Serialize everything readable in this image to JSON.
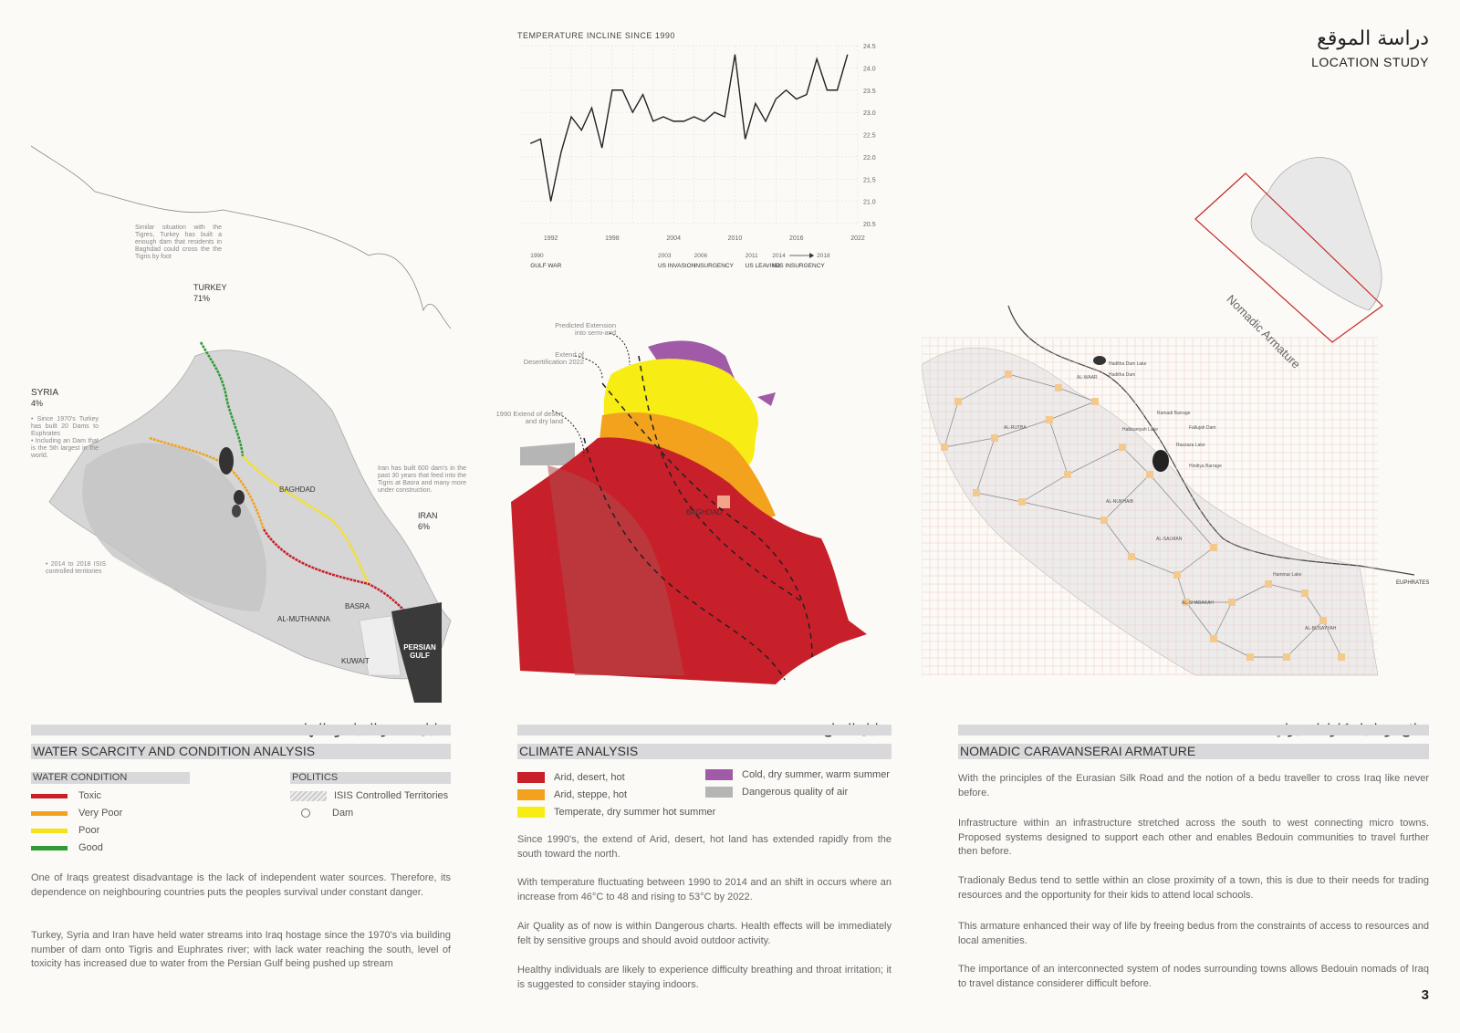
{
  "header": {
    "title_ar": "دراسة الموقع",
    "title_en": "LOCATION STUDY",
    "page_number": "3"
  },
  "chart_data": {
    "type": "line",
    "title": "TEMPERATURE INCLINE SINCE 1990",
    "x": [
      1990,
      1991,
      1992,
      1993,
      1994,
      1995,
      1996,
      1997,
      1998,
      1999,
      2000,
      2001,
      2002,
      2003,
      2004,
      2005,
      2006,
      2007,
      2008,
      2009,
      2010,
      2011,
      2012,
      2013,
      2014,
      2015,
      2016,
      2017,
      2018,
      2019,
      2020,
      2021
    ],
    "y": [
      22.3,
      22.4,
      21.0,
      22.1,
      22.9,
      22.6,
      23.1,
      22.2,
      23.5,
      23.5,
      23.0,
      23.4,
      22.8,
      22.9,
      22.8,
      22.8,
      22.9,
      22.8,
      23.0,
      22.9,
      24.3,
      22.4,
      23.2,
      22.8,
      23.3,
      23.5,
      23.3,
      23.4,
      24.2,
      23.5,
      23.5,
      24.3
    ],
    "ylim": [
      20.5,
      24.5
    ],
    "yticks": [
      "24.5",
      "24.0",
      "23.5",
      "23.0",
      "22.5",
      "22.0",
      "21.5",
      "21.0",
      "20.5"
    ],
    "xticks": [
      "1992",
      "1998",
      "2004",
      "2010",
      "2016",
      "2022"
    ],
    "events": [
      {
        "year": "1990",
        "label": "GULF WAR"
      },
      {
        "year": "2003",
        "label": "US INVASION"
      },
      {
        "year": "2006",
        "label": "INSURGENCY"
      },
      {
        "year": "2011",
        "label": "US LEAVING"
      },
      {
        "year": "2014",
        "label": "ISIS INSURGENCY"
      },
      {
        "year": "2018",
        "label": ""
      }
    ],
    "grid": true,
    "color": "#222222"
  },
  "water_map": {
    "labels": {
      "turkey": "TURKEY",
      "turkey_pct": "71%",
      "syria": "SYRIA",
      "syria_pct": "4%",
      "iran": "IRAN",
      "iran_pct": "6%",
      "baghdad": "BAGHDAD",
      "basra": "BASRA",
      "al_muthanna": "AL-MUTHANNA",
      "kuwait": "KUWAIT",
      "gulf": "PERSIAN GULF"
    },
    "notes": {
      "turkey": "Similar situation with the Tigres, Turkey has built a enough dam that residents in Baghdad could cross the the Tigris by foot",
      "syria1": "• Since 1970's Turkey has built 20 Dams to Euphrates",
      "syria2": "• Including an Dam that is the 5th largest in the world.",
      "iran": "Iran has built 600 dam's in the past 30 years that feed into the Tigris at Basra and many more under construction.",
      "isis": "• 2014 to 2018 ISIS controlled territories"
    }
  },
  "climate_map": {
    "labels": {
      "predicted": "Predicted Extension into semi-arid",
      "extend2022": "Extend of Desertification 2022",
      "extend1990": "1990 Extend of desert and dry land",
      "baghdad": "BAGHDAD"
    }
  },
  "nomadic_map": {
    "inset_label": "Nomadic Armature",
    "euphrates": "EUPHRATES",
    "places": [
      "Haditha Dam Lake",
      "Haditha Dam",
      "Ramadi Barrage",
      "Habbaniyah Lake",
      "Fallujah Dam",
      "Razzaza Lake",
      "Hindiya Barrage",
      "AL-RUTBA",
      "AL-NUKHAIB",
      "AL-SALMAN",
      "AL-SHABAKAH",
      "AL-BUSAYYAH",
      "AL-WAAR",
      "Hammar Lake"
    ],
    "colors": {
      "grid": "#f0c9c0",
      "node": "#f3c98e",
      "frame": "#c52a2a"
    }
  },
  "water_section": {
    "title_ar": "تحليل مصدر المياه وحالتها",
    "title_en": "WATER SCARCITY AND CONDITION ANALYSIS",
    "condition_header": "WATER CONDITION",
    "politics_header": "POLITICS",
    "conditions": [
      {
        "label": "Toxic",
        "color": "#c8202a"
      },
      {
        "label": "Very Poor",
        "color": "#f2a21d"
      },
      {
        "label": "Poor",
        "color": "#f7e21a"
      },
      {
        "label": "Good",
        "color": "#2f9a36"
      }
    ],
    "politics": [
      {
        "label": "ISIS Controlled Territories"
      },
      {
        "label": "Dam"
      }
    ],
    "paragraphs": [
      "One of Iraqs greatest disadvantage is the lack of independent water sources. Therefore, its dependence on neighbouring countries puts the peoples survival under constant danger.",
      "Turkey, Syria and Iran have held water streams into Iraq hostage since the 1970's via building number of dam onto Tigris and Euphrates river; with lack water reaching the south, level of toxicity has increased due to water from the Persian Gulf being pushed up stream"
    ]
  },
  "climate_section": {
    "title_ar": "تحليل المناخ",
    "title_en": "CLIMATE ANALYSIS",
    "legend_left": [
      {
        "label": "Arid, desert, hot",
        "color": "#c8202a"
      },
      {
        "label": "Arid, steppe, hot",
        "color": "#f2a21d"
      },
      {
        "label": "Temperate, dry summer hot summer",
        "color": "#f7ec13"
      }
    ],
    "legend_right": [
      {
        "label": "Cold, dry summer, warm summer",
        "color": "#a05aa8"
      },
      {
        "label": "Dangerous quality of air",
        "color": "#b5b5b5"
      }
    ],
    "paragraphs": [
      "Since 1990's, the extend of Arid, desert, hot land has extended rapidly from the south toward the north.",
      "With temperature fluctuating between 1990 to 2014 and an shift in occurs where an increase from 46°C to 48 and rising to 53°C by 2022.",
      "Air Quality as of now is within Dangerous charts. Health effects will be immediately felt by sensitive groups and should avoid outdoor activity.",
      "Healthy individuals are likely to experience difficulty breathing and throat irritation; it is suggested to consider staying indoors."
    ]
  },
  "nomadic_section": {
    "title_ar": "سلاح نوماديك كارافانسيراي",
    "title_en": "NOMADIC CARAVANSERAI ARMATURE",
    "paragraphs": [
      "With the principles of the Eurasian Silk Road and the notion of a bedu traveller to cross Iraq like never before.",
      "Infrastructure within an infrastructure stretched across the south to west connecting micro towns. Proposed systems designed to support each other and enables Bedouin communities to travel further then before.",
      "Tradionaly Bedus tend to settle within an close proximity of a town, this is due to their needs for trading resources and the opportunity for their kids to attend local schools.",
      "This armature enhanced their way of life by freeing bedus from the constraints of access to resources and local amenities.",
      "The importance of an interconnected system of nodes surrounding towns allows Bedouin nomads of Iraq to travel distance considerer difficult before."
    ]
  }
}
